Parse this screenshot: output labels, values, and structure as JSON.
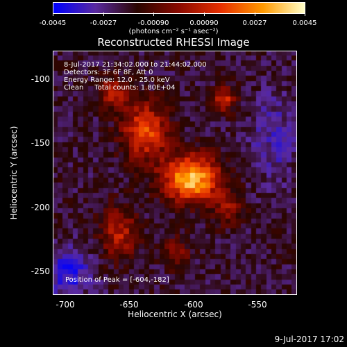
{
  "colorbar": {
    "ticks": [
      "-0.0045",
      "-0.0027",
      "-0.00090",
      "0.00090",
      "0.0027",
      "0.0045"
    ],
    "units": "(photons cm⁻² s⁻¹ asec⁻²)",
    "colors": [
      "#0000ff",
      "#5a2aa0",
      "#2a0500",
      "#8b0a00",
      "#e83000",
      "#ff9a00",
      "#ffffc8"
    ]
  },
  "title": "Reconstructed RHESSI Image",
  "annotations": {
    "time_range": "8-Jul-2017 21:34:02.000 to 21:44:02.000",
    "detectors": "Detectors: 3F 6F 8F, Att 0",
    "energy": "Energy Range: 12.0 - 25.0 keV",
    "clean": "Clean     Total counts: 1.80E+04",
    "peak": "Position of Peak = [-604,-182]"
  },
  "axes": {
    "xlabel": "Heliocentric X (arcsec)",
    "ylabel": "Heliocentric Y (arcsec)",
    "xticks": [
      "-700",
      "-650",
      "-600",
      "-550"
    ],
    "yticks": [
      "-100",
      "-150",
      "-200",
      "-250"
    ],
    "xrange": [
      -712,
      -522
    ],
    "yrange": [
      -272,
      -82
    ]
  },
  "peak_position": [
    -604,
    -182
  ],
  "timestamp": "9-Jul-2017 17:02"
}
